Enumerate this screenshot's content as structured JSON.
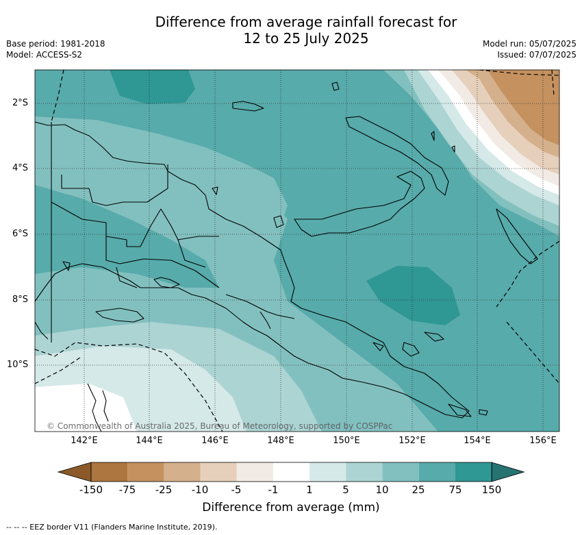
{
  "title_line1": "Difference from average rainfall forecast for",
  "title_line2": "12 to 25 July 2025",
  "base_period": "Base period: 1981-2018",
  "model": "Model: ACCESS-S2",
  "model_run": "Model run: 05/07/2025",
  "issued": "Issued: 07/07/2025",
  "copyright": "© Commonwealth of Australia 2025, Bureau of Meteorology, supported by COSPPac",
  "lat_labels": [
    "2°S",
    "4°S",
    "6°S",
    "8°S",
    "10°S"
  ],
  "lon_labels": [
    "142°E",
    "144°E",
    "146°E",
    "148°E",
    "150°E",
    "152°E",
    "154°E",
    "156°E"
  ],
  "colorbar": {
    "labels": [
      "-150",
      "-75",
      "-25",
      "-10",
      "-5",
      "-1",
      "1",
      "5",
      "10",
      "25",
      "75",
      "150"
    ],
    "colors": [
      "#8c5a2a",
      "#ad753f",
      "#c4915f",
      "#d5b08c",
      "#e6d0bb",
      "#f2ebe5",
      "#ffffff",
      "#d5e9e8",
      "#acd4d3",
      "#82c0bf",
      "#57abaa",
      "#2f9794",
      "#267372"
    ],
    "title": "Difference from average (mm)"
  },
  "footer": "--  --  -- EEZ border V11 (Flanders Marine Institute, 2019)."
}
